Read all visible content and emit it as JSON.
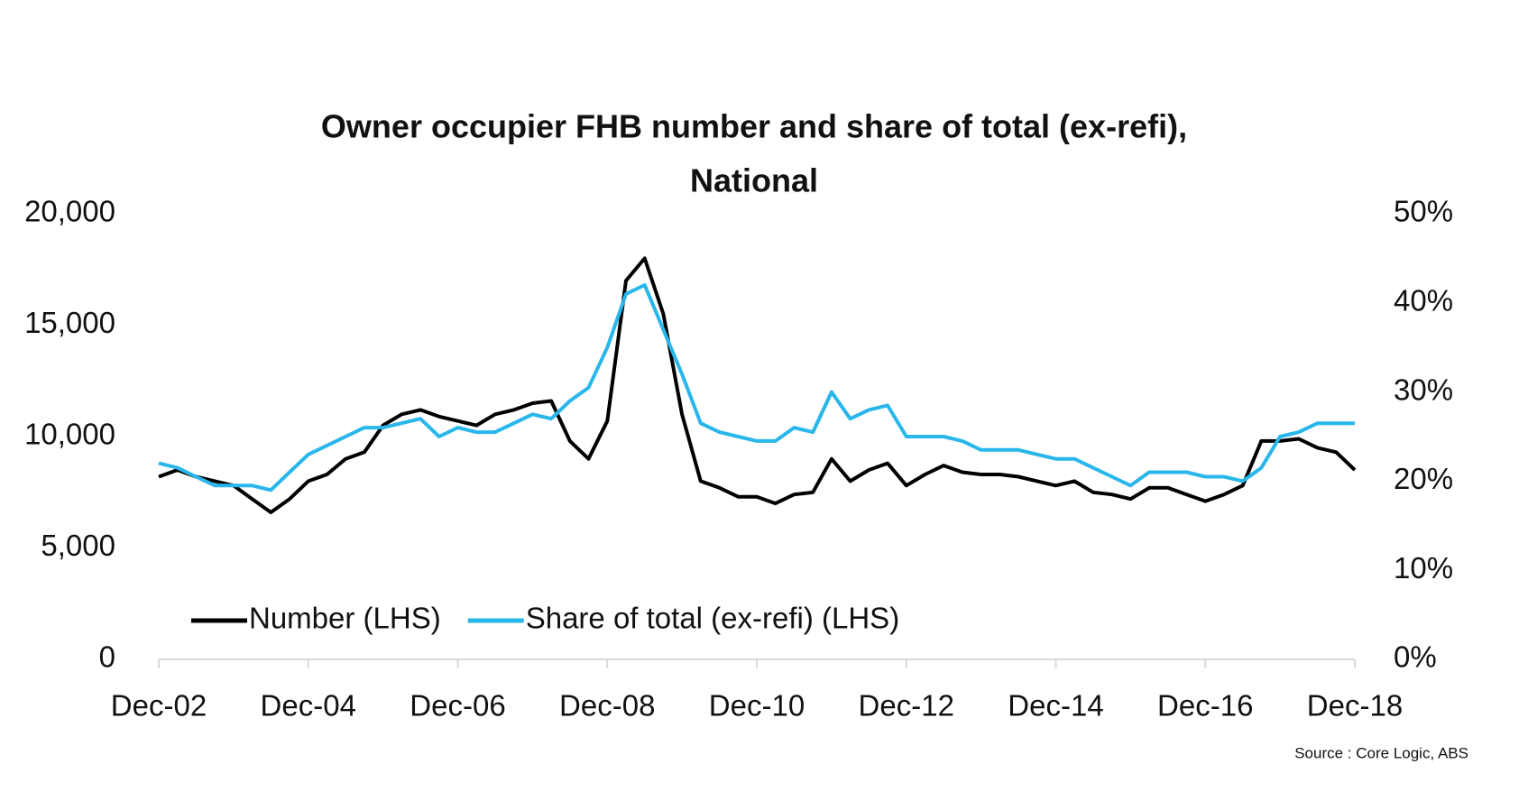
{
  "chart_data": {
    "type": "line",
    "title": "Owner occupier FHB number and share of total (ex-refi),",
    "subtitle": "National",
    "source": "Source : Core Logic, ABS",
    "categories": [
      "Dec-02",
      null,
      null,
      null,
      null,
      null,
      null,
      null,
      "Dec-04",
      null,
      null,
      null,
      null,
      null,
      null,
      null,
      "Dec-06",
      null,
      null,
      null,
      null,
      null,
      null,
      null,
      "Dec-08",
      null,
      null,
      null,
      null,
      null,
      null,
      null,
      "Dec-10",
      null,
      null,
      null,
      null,
      null,
      null,
      null,
      "Dec-12",
      null,
      null,
      null,
      null,
      null,
      null,
      null,
      "Dec-14",
      null,
      null,
      null,
      null,
      null,
      null,
      null,
      "Dec-16",
      null,
      null,
      null,
      null,
      null,
      null,
      null,
      "Dec-18"
    ],
    "series": [
      {
        "name": "Number (LHS)",
        "color": "#000000",
        "values": [
          8200,
          8500,
          8200,
          8000,
          7800,
          7200,
          6600,
          7200,
          8000,
          8300,
          9000,
          9300,
          10500,
          11000,
          11200,
          10900,
          10700,
          10500,
          11000,
          11200,
          11500,
          11600,
          9800,
          9000,
          10700,
          17000,
          18000,
          15500,
          11000,
          8000,
          7700,
          7300,
          7300,
          7000,
          7400,
          7500,
          9000,
          8000,
          8500,
          8800,
          7800,
          8300,
          8700,
          8400,
          8300,
          8300,
          8200,
          8000,
          7800,
          8000,
          7500,
          7400,
          7200,
          7700,
          7700,
          7400,
          7100,
          7400,
          7800,
          9800,
          9800,
          9900,
          9500,
          9300,
          8500
        ]
      },
      {
        "name": "Share of total (ex-refi) (LHS)",
        "color": "#29b6ea",
        "axis": "y2",
        "values": [
          22,
          21.5,
          20.5,
          19.5,
          19.5,
          19.5,
          19,
          21,
          23,
          24,
          25,
          26,
          26,
          26.5,
          27,
          25,
          26,
          25.5,
          25.5,
          26.5,
          27.5,
          27,
          29,
          30.5,
          35,
          41,
          42,
          37,
          32,
          26.5,
          25.5,
          25,
          24.5,
          24.5,
          26,
          25.5,
          30,
          27,
          28,
          28.5,
          25,
          25,
          25,
          24.5,
          23.5,
          23.5,
          23.5,
          23,
          22.5,
          22.5,
          21.5,
          20.5,
          19.5,
          21,
          21,
          21,
          20.5,
          20.5,
          20,
          21.5,
          25,
          25.5,
          26.5,
          26.5,
          26.5
        ]
      }
    ],
    "ylim": [
      0,
      20000
    ],
    "yticks": [
      0,
      {
        "value": 5000,
        "label": "5,000"
      },
      {
        "value": 10000,
        "label": "10,000"
      },
      {
        "value": 15000,
        "label": "15,000"
      },
      {
        "value": 20000,
        "label": "20,000"
      }
    ],
    "y2lim": [
      0,
      50
    ],
    "y2ticks": [
      {
        "value": 0,
        "label": "0%"
      },
      {
        "value": 10,
        "label": "10%"
      },
      {
        "value": 20,
        "label": "20%"
      },
      {
        "value": 30,
        "label": "30%"
      },
      {
        "value": 40,
        "label": "40%"
      },
      {
        "value": 50,
        "label": "50%"
      }
    ],
    "grid": false,
    "legend": "bottom-left"
  }
}
